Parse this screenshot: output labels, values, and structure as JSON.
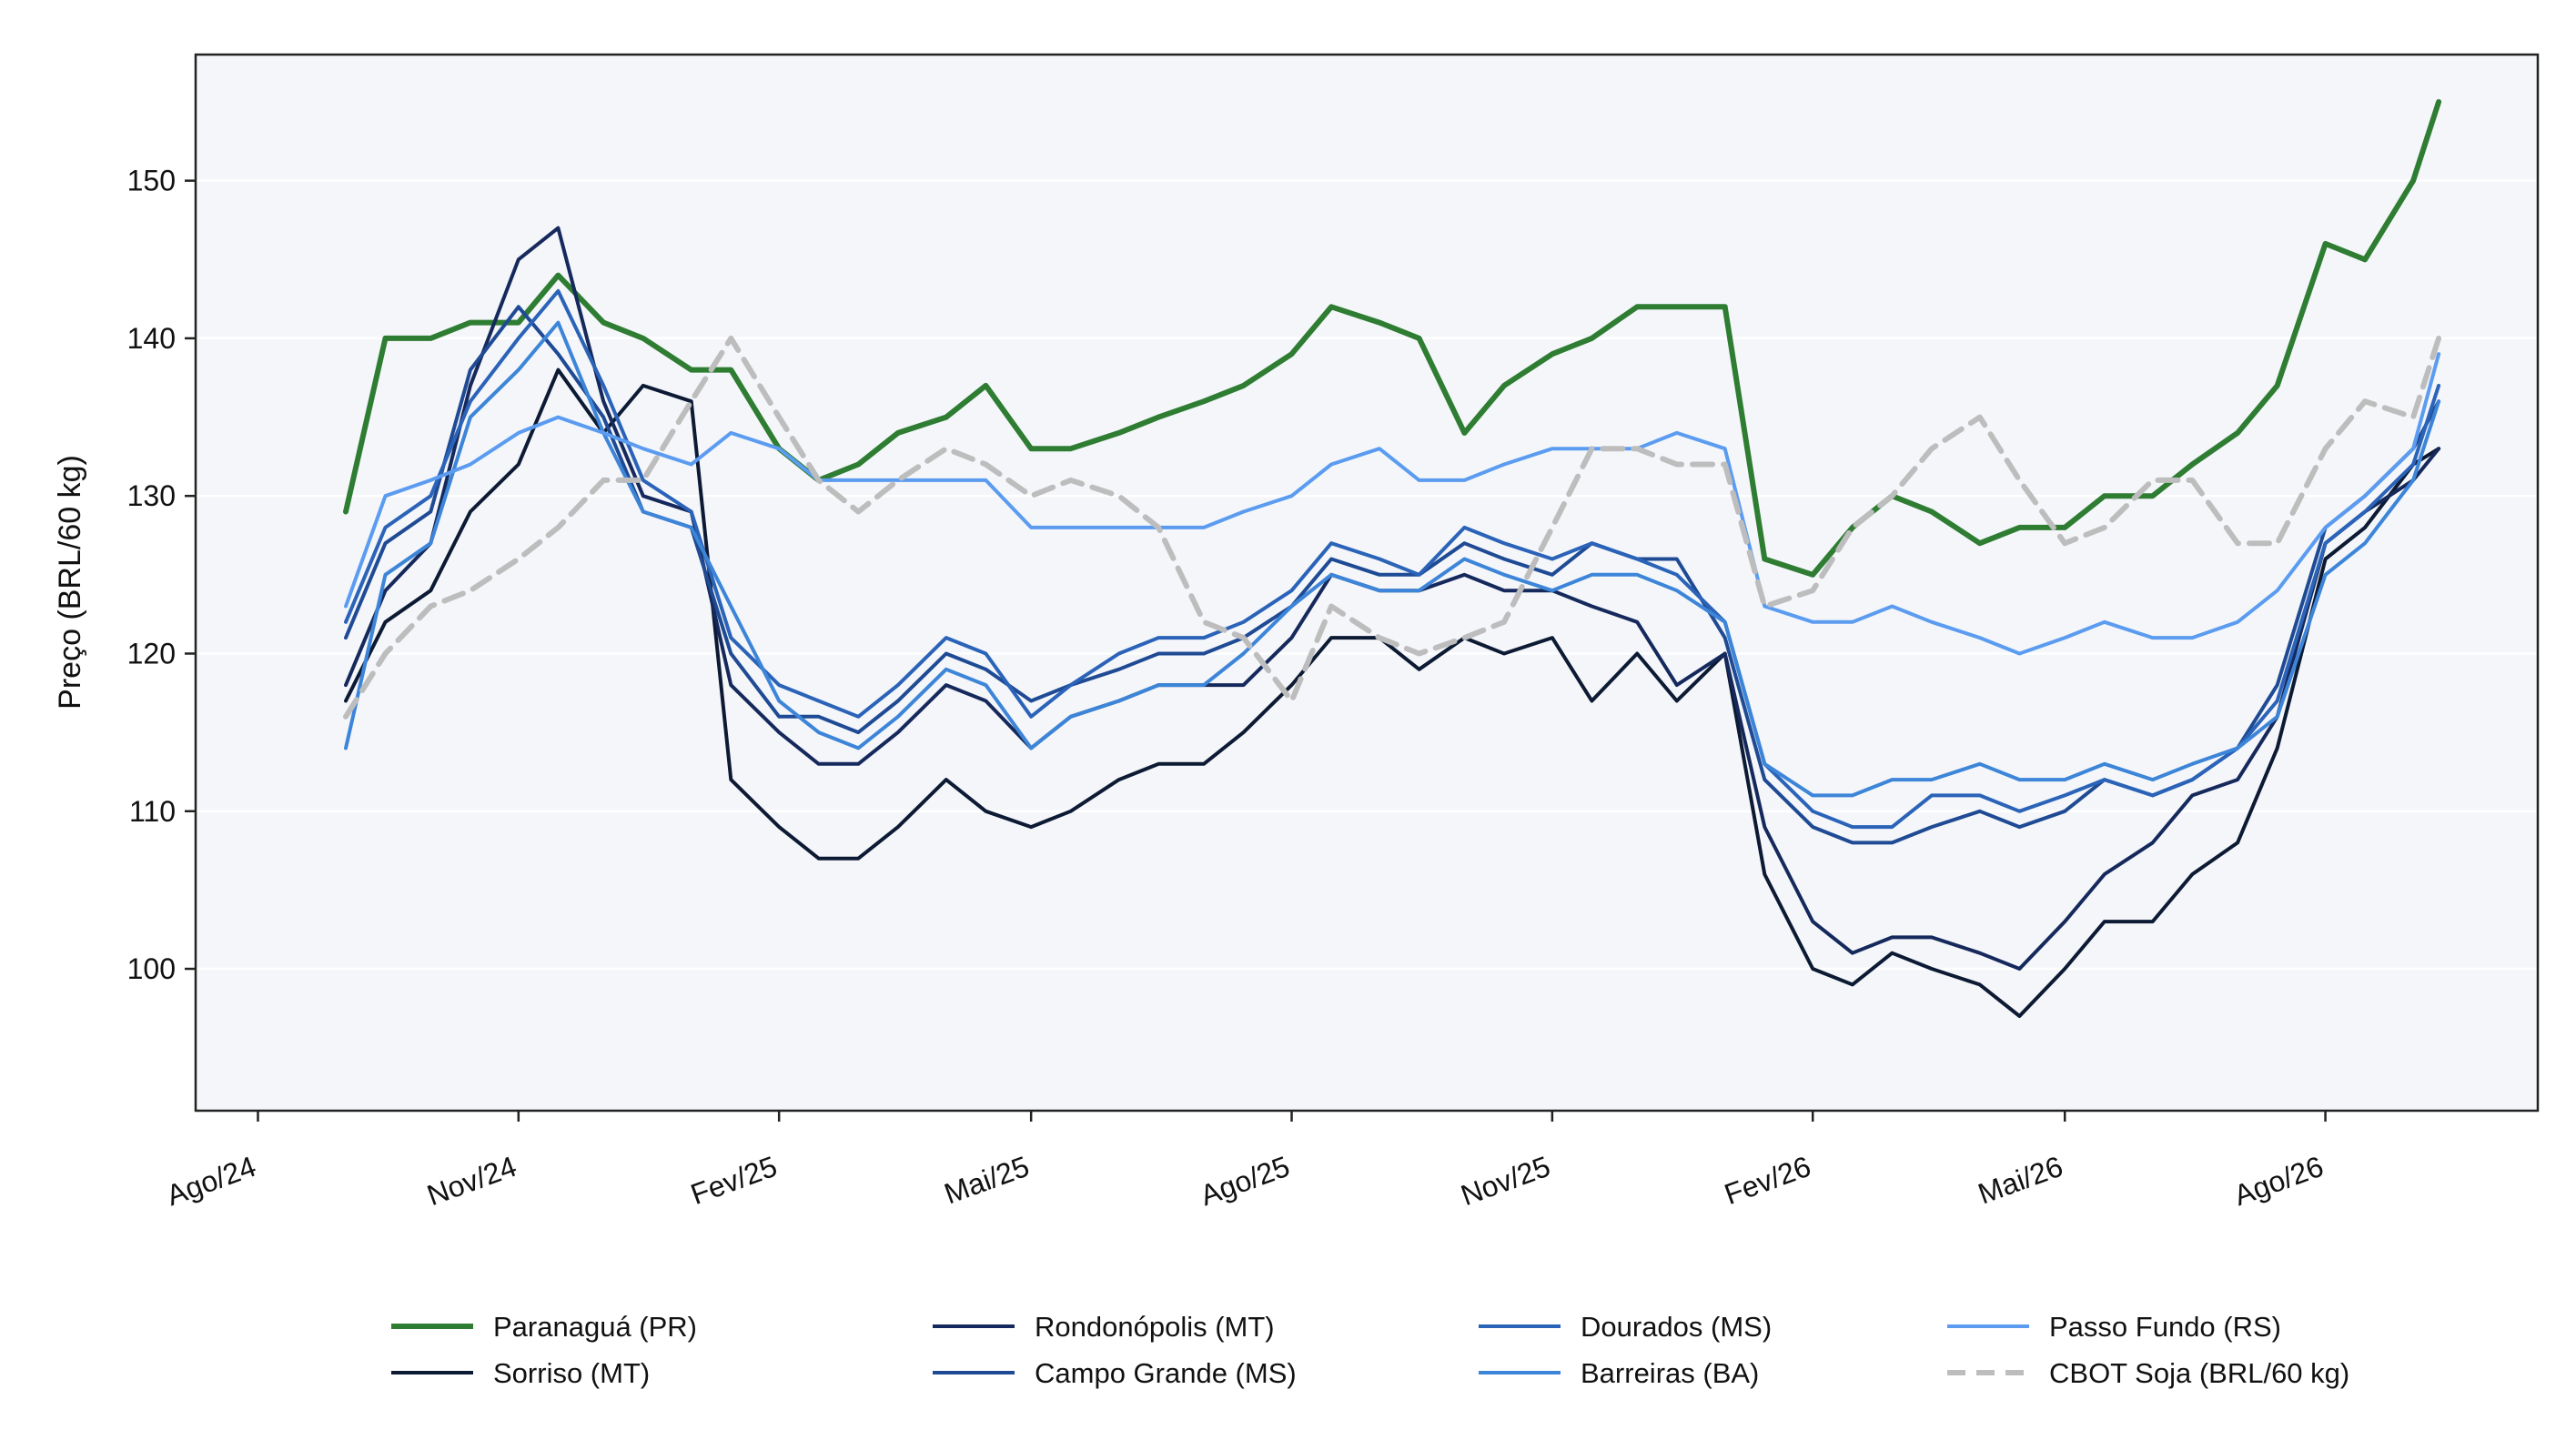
{
  "chart_data": {
    "type": "line",
    "title": "",
    "xlabel": "",
    "ylabel": "Preço (BRL/60 kg)",
    "x_range": [
      "2024-07-10",
      "2026-10-15"
    ],
    "ylim": [
      91,
      158
    ],
    "yticks": [
      100,
      110,
      120,
      130,
      140,
      150
    ],
    "xticks": [
      {
        "date": "2024-08-01",
        "label": "Ago/24"
      },
      {
        "date": "2024-11-01",
        "label": "Nov/24"
      },
      {
        "date": "2025-02-01",
        "label": "Fev/25"
      },
      {
        "date": "2025-05-01",
        "label": "Mai/25"
      },
      {
        "date": "2025-08-01",
        "label": "Ago/25"
      },
      {
        "date": "2025-11-01",
        "label": "Nov/25"
      },
      {
        "date": "2026-02-01",
        "label": "Fev/26"
      },
      {
        "date": "2026-05-01",
        "label": "Mai/26"
      },
      {
        "date": "2026-08-01",
        "label": "Ago/26"
      }
    ],
    "grid": "horizontal",
    "legend_position": "bottom",
    "legend_columns": 4,
    "dates": [
      "2024-09-01",
      "2024-09-15",
      "2024-10-01",
      "2024-10-15",
      "2024-11-01",
      "2024-11-15",
      "2024-12-01",
      "2024-12-15",
      "2025-01-01",
      "2025-01-15",
      "2025-02-01",
      "2025-02-15",
      "2025-03-01",
      "2025-03-15",
      "2025-04-01",
      "2025-04-15",
      "2025-05-01",
      "2025-05-15",
      "2025-06-01",
      "2025-06-15",
      "2025-07-01",
      "2025-07-15",
      "2025-08-01",
      "2025-08-15",
      "2025-09-01",
      "2025-09-15",
      "2025-10-01",
      "2025-10-15",
      "2025-11-01",
      "2025-11-15",
      "2025-12-01",
      "2025-12-15",
      "2026-01-01",
      "2026-01-15",
      "2026-02-01",
      "2026-02-15",
      "2026-03-01",
      "2026-03-15",
      "2026-04-01",
      "2026-04-15",
      "2026-05-01",
      "2026-05-15",
      "2026-06-01",
      "2026-06-15",
      "2026-07-01",
      "2026-07-15",
      "2026-08-01",
      "2026-08-15",
      "2026-09-01",
      "2026-09-10"
    ],
    "series": [
      {
        "name": "Paranaguá (PR)",
        "color": "#2e7d32",
        "width": 6,
        "dash": "",
        "values": [
          129,
          140,
          140,
          141,
          141,
          144,
          141,
          140,
          138,
          138,
          133,
          131,
          132,
          134,
          135,
          137,
          133,
          133,
          134,
          135,
          136,
          137,
          139,
          142,
          141,
          140,
          134,
          137,
          139,
          140,
          142,
          142,
          142,
          126,
          125,
          128,
          130,
          129,
          127,
          128,
          128,
          130,
          130,
          132,
          134,
          137,
          146,
          145,
          150,
          155
        ]
      },
      {
        "name": "Sorriso (MT)",
        "color": "#0c1a33",
        "width": 4,
        "dash": "",
        "values": [
          117,
          122,
          124,
          129,
          132,
          138,
          134,
          137,
          136,
          112,
          109,
          107,
          107,
          109,
          112,
          110,
          109,
          110,
          112,
          113,
          113,
          115,
          118,
          121,
          121,
          119,
          121,
          120,
          121,
          117,
          120,
          117,
          120,
          106,
          100,
          99,
          101,
          100,
          99,
          97,
          100,
          103,
          103,
          106,
          108,
          114,
          126,
          128,
          132,
          133
        ]
      },
      {
        "name": "Rondonópolis (MT)",
        "color": "#16295c",
        "width": 4,
        "dash": "",
        "values": [
          118,
          124,
          127,
          137,
          145,
          147,
          136,
          130,
          129,
          118,
          115,
          113,
          113,
          115,
          118,
          117,
          114,
          116,
          117,
          118,
          118,
          118,
          121,
          125,
          124,
          124,
          125,
          124,
          124,
          123,
          122,
          118,
          120,
          109,
          103,
          101,
          102,
          102,
          101,
          100,
          103,
          106,
          108,
          111,
          112,
          116,
          127,
          129,
          131,
          133
        ]
      },
      {
        "name": "Campo Grande (MS)",
        "color": "#1f4a94",
        "width": 4,
        "dash": "",
        "values": [
          121,
          127,
          129,
          138,
          142,
          139,
          135,
          129,
          128,
          120,
          116,
          116,
          115,
          117,
          120,
          119,
          117,
          118,
          119,
          120,
          120,
          121,
          123,
          126,
          125,
          125,
          127,
          126,
          125,
          127,
          126,
          126,
          121,
          112,
          109,
          108,
          108,
          109,
          110,
          109,
          110,
          112,
          111,
          112,
          114,
          118,
          128,
          130,
          133,
          136
        ]
      },
      {
        "name": "Dourados (MS)",
        "color": "#2a63b8",
        "width": 4,
        "dash": "",
        "values": [
          122,
          128,
          130,
          136,
          140,
          143,
          137,
          131,
          129,
          121,
          118,
          117,
          116,
          118,
          121,
          120,
          116,
          118,
          120,
          121,
          121,
          122,
          124,
          127,
          126,
          125,
          128,
          127,
          126,
          127,
          126,
          125,
          122,
          113,
          110,
          109,
          109,
          111,
          111,
          110,
          111,
          112,
          111,
          112,
          114,
          117,
          127,
          129,
          132,
          137
        ]
      },
      {
        "name": "Barreiras (BA)",
        "color": "#3d85d8",
        "width": 4,
        "dash": "",
        "values": [
          114,
          125,
          127,
          135,
          138,
          141,
          134,
          129,
          128,
          123,
          117,
          115,
          114,
          116,
          119,
          118,
          114,
          116,
          117,
          118,
          118,
          120,
          123,
          125,
          124,
          124,
          126,
          125,
          124,
          125,
          125,
          124,
          122,
          113,
          111,
          111,
          112,
          112,
          113,
          112,
          112,
          113,
          112,
          113,
          114,
          116,
          125,
          127,
          131,
          136
        ]
      },
      {
        "name": "Passo Fundo (RS)",
        "color": "#5b9cf0",
        "width": 4,
        "dash": "",
        "values": [
          123,
          130,
          131,
          132,
          134,
          135,
          134,
          133,
          132,
          134,
          133,
          131,
          131,
          131,
          131,
          131,
          128,
          128,
          128,
          128,
          128,
          129,
          130,
          132,
          133,
          131,
          131,
          132,
          133,
          133,
          133,
          134,
          133,
          123,
          122,
          122,
          123,
          122,
          121,
          120,
          121,
          122,
          121,
          121,
          122,
          124,
          128,
          130,
          133,
          139
        ]
      },
      {
        "name": "CBOT Soja (BRL/60 kg)",
        "color": "#bdbdbd",
        "width": 6,
        "dash": "22,12",
        "values": [
          116,
          120,
          123,
          124,
          126,
          128,
          131,
          131,
          136,
          140,
          135,
          131,
          129,
          131,
          133,
          132,
          130,
          131,
          130,
          128,
          122,
          121,
          117,
          123,
          121,
          120,
          121,
          122,
          128,
          133,
          133,
          132,
          132,
          123,
          124,
          128,
          130,
          133,
          135,
          131,
          127,
          128,
          131,
          131,
          127,
          127,
          133,
          136,
          135,
          140
        ]
      }
    ]
  }
}
